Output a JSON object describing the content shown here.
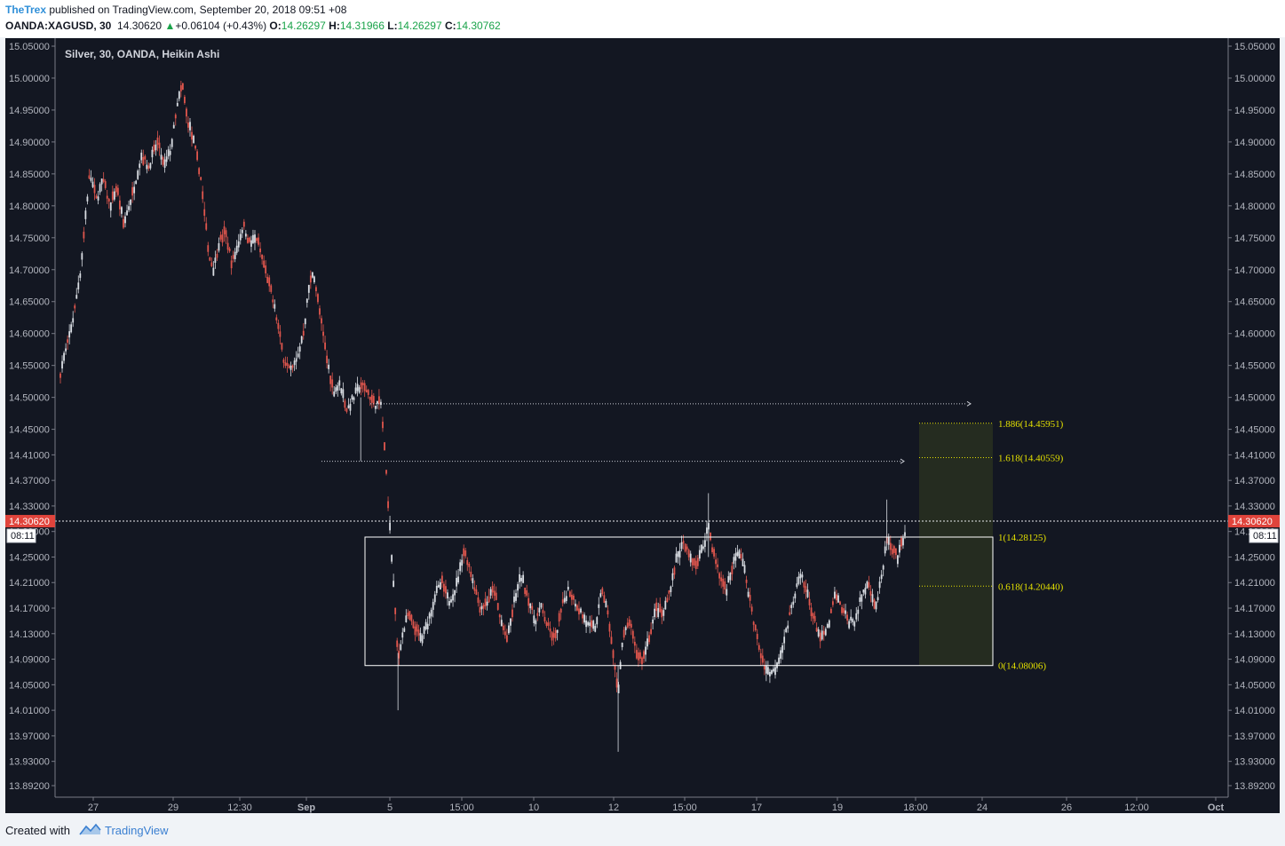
{
  "header": {
    "author": "TheTrex",
    "published_text": "published on TradingView.com, September 20, 2018 09:51 +08",
    "symbol": "OANDA:XAGUSD, 30",
    "last": "14.30620",
    "change_arrow": "▲",
    "change": "+0.06104 (+0.43%)",
    "o_label": "O:",
    "o_value": "14.26297",
    "h_label": "H:",
    "h_value": "14.31966",
    "l_label": "L:",
    "l_value": "14.26297",
    "c_label": "C:",
    "c_value": "14.30762"
  },
  "footer": {
    "created_with": "Created with",
    "brand": "TradingView",
    "brand_icon": "tradingview-cloud-icon"
  },
  "colors": {
    "background": "#131722",
    "up_candle": "#d9dde3",
    "down_candle": "#e0564d",
    "price_label": "#e0443c",
    "fib_text": "#e3e000",
    "range_box": "#ffffff",
    "target_zone": "#2a3220",
    "link": "#2f8fd8"
  },
  "chart_data": {
    "type": "candlestick",
    "style": "Heikin Ashi",
    "title": "Silver, 30, OANDA, Heikin Ashi",
    "ylim": [
      13.892,
      15.058
    ],
    "y_ticks": [
      "15.05000",
      "15.00000",
      "14.95000",
      "14.90000",
      "14.85000",
      "14.80000",
      "14.75000",
      "14.70000",
      "14.65000",
      "14.60000",
      "14.55000",
      "14.50000",
      "14.45000",
      "14.41000",
      "14.37000",
      "14.33000",
      "14.29000",
      "14.25000",
      "14.21000",
      "14.17000",
      "14.13000",
      "14.09000",
      "14.05000",
      "14.01000",
      "13.97000",
      "13.93000",
      "13.89200"
    ],
    "x_ticks": [
      "27",
      "29",
      "12:30",
      "Sep",
      "5",
      "15:00",
      "10",
      "12",
      "15:00",
      "17",
      "19",
      "18:00",
      "24",
      "26",
      "12:00",
      "Oct"
    ],
    "x_ticks_bold": [
      "Sep",
      "Oct"
    ],
    "current_price": "14.30620",
    "countdown": "08:11",
    "path_points": [
      [
        0,
        14.54
      ],
      [
        0.3,
        14.58
      ],
      [
        0.6,
        14.63
      ],
      [
        0.9,
        14.7
      ],
      [
        1.1,
        14.78
      ],
      [
        1.3,
        14.85
      ],
      [
        1.6,
        14.81
      ],
      [
        1.9,
        14.84
      ],
      [
        2.2,
        14.8
      ],
      [
        2.5,
        14.83
      ],
      [
        2.8,
        14.77
      ],
      [
        3.2,
        14.82
      ],
      [
        3.6,
        14.88
      ],
      [
        3.9,
        14.86
      ],
      [
        4.3,
        14.9
      ],
      [
        4.6,
        14.86
      ],
      [
        4.9,
        14.89
      ],
      [
        5.2,
        14.96
      ],
      [
        5.4,
        14.99
      ],
      [
        5.6,
        14.94
      ],
      [
        5.9,
        14.9
      ],
      [
        6.2,
        14.85
      ],
      [
        6.4,
        14.78
      ],
      [
        6.6,
        14.72
      ],
      [
        6.8,
        14.7
      ],
      [
        7.0,
        14.74
      ],
      [
        7.3,
        14.76
      ],
      [
        7.6,
        14.71
      ],
      [
        7.8,
        14.73
      ],
      [
        8.1,
        14.77
      ],
      [
        8.4,
        14.74
      ],
      [
        8.7,
        14.75
      ],
      [
        9.0,
        14.71
      ],
      [
        9.3,
        14.67
      ],
      [
        9.6,
        14.62
      ],
      [
        9.9,
        14.56
      ],
      [
        10.2,
        14.54
      ],
      [
        10.5,
        14.56
      ],
      [
        10.8,
        14.61
      ],
      [
        11.0,
        14.67
      ],
      [
        11.2,
        14.7
      ],
      [
        11.5,
        14.63
      ],
      [
        11.8,
        14.56
      ],
      [
        12.1,
        14.51
      ],
      [
        12.4,
        14.52
      ],
      [
        12.7,
        14.48
      ],
      [
        13.0,
        14.5
      ],
      [
        13.3,
        14.52
      ],
      [
        13.6,
        14.51
      ],
      [
        13.9,
        14.49
      ],
      [
        14.2,
        14.49
      ],
      [
        14.4,
        14.4
      ],
      [
        14.6,
        14.29
      ],
      [
        14.8,
        14.18
      ],
      [
        14.95,
        14.09
      ],
      [
        15.1,
        14.12
      ],
      [
        15.4,
        14.16
      ],
      [
        15.7,
        14.14
      ],
      [
        16.0,
        14.12
      ],
      [
        16.3,
        14.15
      ],
      [
        16.6,
        14.19
      ],
      [
        16.9,
        14.21
      ],
      [
        17.2,
        14.18
      ],
      [
        17.5,
        14.2
      ],
      [
        17.7,
        14.23
      ],
      [
        17.85,
        14.26
      ],
      [
        18.0,
        14.25
      ],
      [
        18.3,
        14.21
      ],
      [
        18.6,
        14.17
      ],
      [
        18.9,
        14.18
      ],
      [
        19.2,
        14.2
      ],
      [
        19.5,
        14.15
      ],
      [
        19.8,
        14.12
      ],
      [
        20.1,
        14.18
      ],
      [
        20.4,
        14.22
      ],
      [
        20.7,
        14.19
      ],
      [
        21.0,
        14.15
      ],
      [
        21.3,
        14.17
      ],
      [
        21.6,
        14.14
      ],
      [
        21.9,
        14.12
      ],
      [
        22.2,
        14.17
      ],
      [
        22.5,
        14.2
      ],
      [
        22.8,
        14.18
      ],
      [
        23.1,
        14.16
      ],
      [
        23.4,
        14.14
      ],
      [
        23.7,
        14.14
      ],
      [
        24.0,
        14.2
      ],
      [
        24.3,
        14.15
      ],
      [
        24.5,
        14.09
      ],
      [
        24.7,
        14.04
      ],
      [
        24.9,
        14.12
      ],
      [
        25.2,
        14.15
      ],
      [
        25.5,
        14.1
      ],
      [
        25.8,
        14.09
      ],
      [
        26.1,
        14.13
      ],
      [
        26.4,
        14.17
      ],
      [
        26.7,
        14.16
      ],
      [
        27.0,
        14.2
      ],
      [
        27.3,
        14.25
      ],
      [
        27.6,
        14.27
      ],
      [
        27.9,
        14.25
      ],
      [
        28.2,
        14.24
      ],
      [
        28.5,
        14.27
      ],
      [
        28.7,
        14.3
      ],
      [
        28.9,
        14.26
      ],
      [
        29.2,
        14.22
      ],
      [
        29.5,
        14.2
      ],
      [
        29.8,
        14.24
      ],
      [
        30.1,
        14.26
      ],
      [
        30.4,
        14.21
      ],
      [
        30.7,
        14.15
      ],
      [
        31.0,
        14.1
      ],
      [
        31.3,
        14.07
      ],
      [
        31.6,
        14.07
      ],
      [
        31.9,
        14.1
      ],
      [
        32.2,
        14.14
      ],
      [
        32.5,
        14.19
      ],
      [
        32.8,
        14.22
      ],
      [
        33.1,
        14.19
      ],
      [
        33.4,
        14.15
      ],
      [
        33.7,
        14.12
      ],
      [
        34.0,
        14.14
      ],
      [
        34.3,
        14.19
      ],
      [
        34.6,
        14.17
      ],
      [
        34.9,
        14.15
      ],
      [
        35.2,
        14.15
      ],
      [
        35.5,
        14.19
      ],
      [
        35.8,
        14.21
      ],
      [
        36.1,
        14.17
      ],
      [
        36.4,
        14.22
      ],
      [
        36.6,
        14.28
      ],
      [
        36.8,
        14.26
      ],
      [
        37.1,
        14.25
      ],
      [
        37.4,
        14.29
      ]
    ],
    "path_x_range": [
      0,
      37.4
    ],
    "path_plot_x": [
      62,
      1013
    ],
    "annotations": {
      "range_box": {
        "top": 14.28125,
        "bottom": 14.08006
      },
      "horizontal_rays": [
        14.49,
        14.4
      ],
      "fib_levels": [
        {
          "label": "1.886(14.45951)",
          "value": 14.45951
        },
        {
          "label": "1.618(14.40559)",
          "value": 14.40559
        },
        {
          "label": "1(14.28125)",
          "value": 14.28125
        },
        {
          "label": "0.618(14.20440)",
          "value": 14.2044
        },
        {
          "label": "0(14.08006)",
          "value": 14.08006
        }
      ]
    }
  }
}
